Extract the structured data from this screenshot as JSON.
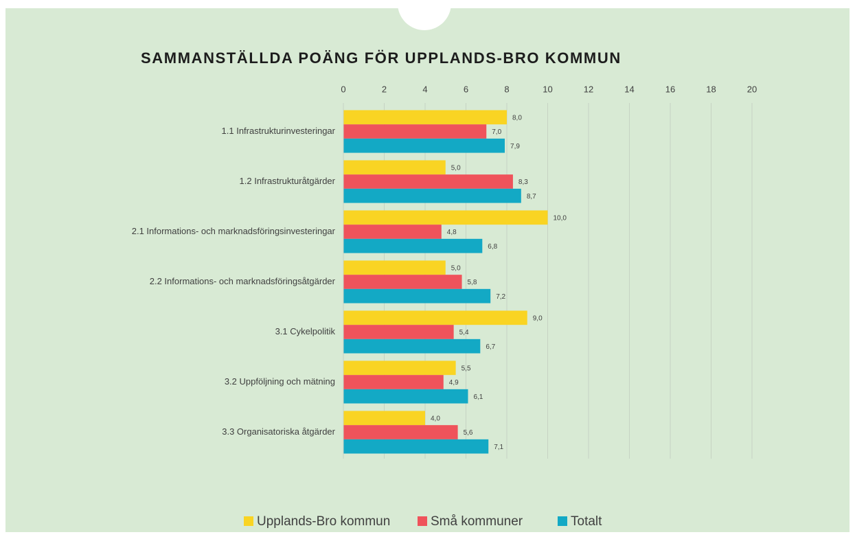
{
  "chart_data": {
    "type": "bar",
    "orientation": "horizontal",
    "title": "SAMMANSTÄLLDA POÄNG FÖR UPPLANDS-BRO KOMMUN",
    "categories": [
      "1.1 Infrastrukturinvesteringar",
      "1.2 Infrastrukturåtgärder",
      "2.1 Informations- och marknadsföringsinvesteringar",
      "2.2 Informations- och marknadsföringsåtgärder",
      "3.1 Cykelpolitik",
      "3.2 Uppföljning och mätning",
      "3.3 Organisatoriska åtgärder"
    ],
    "series": [
      {
        "name": "Upplands-Bro kommun",
        "color": "#f9d423",
        "values": [
          8.0,
          5.0,
          10.0,
          5.0,
          9.0,
          5.5,
          4.0
        ],
        "value_labels": [
          "8,0",
          "5,0",
          "10,0",
          "5,0",
          "9,0",
          "5,5",
          "4,0"
        ]
      },
      {
        "name": "Små kommuner",
        "color": "#ef535b",
        "values": [
          7.0,
          8.3,
          4.8,
          5.8,
          5.4,
          4.9,
          5.6
        ],
        "value_labels": [
          "7,0",
          "8,3",
          "4,8",
          "5,8",
          "5,4",
          "4,9",
          "5,6"
        ]
      },
      {
        "name": "Totalt",
        "color": "#13a9c5",
        "values": [
          7.9,
          8.7,
          6.8,
          7.2,
          6.7,
          6.1,
          7.1
        ],
        "value_labels": [
          "7,9",
          "8,7",
          "6,8",
          "7,2",
          "6,7",
          "6,1",
          "7,1"
        ]
      }
    ],
    "xlim": [
      0,
      20
    ],
    "xticks": [
      0,
      2,
      4,
      6,
      8,
      10,
      12,
      14,
      16,
      18,
      20
    ],
    "grid": true,
    "legend": "bottom"
  }
}
